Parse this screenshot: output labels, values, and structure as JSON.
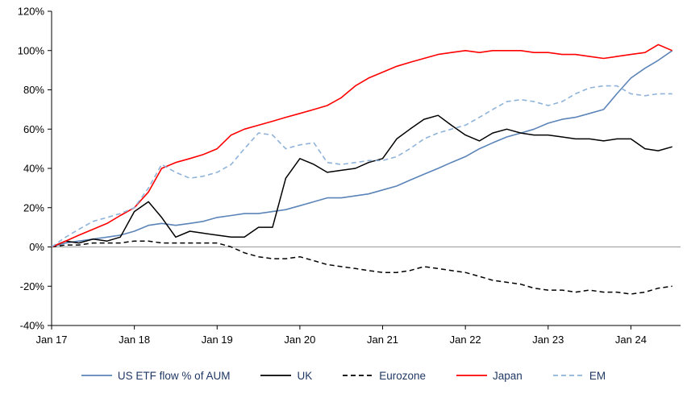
{
  "chart_data": {
    "type": "line",
    "title": "",
    "xlabel": "",
    "ylabel": "",
    "xlim": [
      2017.0,
      2024.6
    ],
    "ylim": [
      -40,
      120
    ],
    "y_ticks": [
      120,
      100,
      80,
      60,
      40,
      20,
      0,
      -20,
      -40
    ],
    "y_tick_suffix": "%",
    "x_tick_values": [
      2017,
      2018,
      2019,
      2020,
      2021,
      2022,
      2023,
      2024
    ],
    "x_tick_labels": [
      "Jan 17",
      "Jan 18",
      "Jan 19",
      "Jan 20",
      "Jan 21",
      "Jan 22",
      "Jan 23",
      "Jan 24"
    ],
    "grid": false,
    "zero_line": true,
    "zero_line_color": "#9a9a9a",
    "axis_color": "#000000",
    "legend_position": "bottom",
    "legend_text_color": "#1f3864",
    "x": [
      2017.0,
      2017.17,
      2017.33,
      2017.5,
      2017.67,
      2017.83,
      2018.0,
      2018.17,
      2018.33,
      2018.5,
      2018.67,
      2018.83,
      2019.0,
      2019.17,
      2019.33,
      2019.5,
      2019.67,
      2019.83,
      2020.0,
      2020.17,
      2020.33,
      2020.5,
      2020.67,
      2020.83,
      2021.0,
      2021.17,
      2021.33,
      2021.5,
      2021.67,
      2021.83,
      2022.0,
      2022.17,
      2022.33,
      2022.5,
      2022.67,
      2022.83,
      2023.0,
      2023.17,
      2023.33,
      2023.5,
      2023.67,
      2023.83,
      2024.0,
      2024.17,
      2024.33,
      2024.5
    ],
    "series": [
      {
        "name": "US ETF flow % of AUM",
        "color": "#5b84b8",
        "dash": "solid",
        "width": 1.6,
        "values": [
          0,
          2,
          3,
          4,
          5,
          6,
          8,
          11,
          12,
          11,
          12,
          13,
          15,
          16,
          17,
          17,
          18,
          19,
          21,
          23,
          25,
          25,
          26,
          27,
          29,
          31,
          34,
          37,
          40,
          43,
          46,
          50,
          53,
          56,
          58,
          60,
          63,
          65,
          66,
          68,
          70,
          78,
          86,
          91,
          95,
          100
        ]
      },
      {
        "name": "UK",
        "color": "#000000",
        "dash": "solid",
        "width": 1.5,
        "values": [
          0,
          3,
          2,
          4,
          3,
          5,
          18,
          23,
          15,
          5,
          8,
          7,
          6,
          5,
          5,
          10,
          10,
          35,
          45,
          42,
          38,
          39,
          40,
          43,
          45,
          55,
          60,
          65,
          67,
          62,
          57,
          54,
          58,
          60,
          58,
          57,
          57,
          56,
          55,
          55,
          54,
          55,
          55,
          50,
          49,
          51
        ]
      },
      {
        "name": "Eurozone",
        "color": "#000000",
        "dash": "dashed",
        "width": 1.5,
        "values": [
          0,
          1,
          1,
          2,
          2,
          2,
          3,
          3,
          2,
          2,
          2,
          2,
          2,
          0,
          -3,
          -5,
          -6,
          -6,
          -5,
          -7,
          -9,
          -10,
          -11,
          -12,
          -13,
          -13,
          -12,
          -10,
          -11,
          -12,
          -13,
          -15,
          -17,
          -18,
          -19,
          -21,
          -22,
          -22,
          -23,
          -22,
          -23,
          -23,
          -24,
          -23,
          -21,
          -20
        ]
      },
      {
        "name": "Japan",
        "color": "#ff0000",
        "dash": "solid",
        "width": 1.6,
        "values": [
          0,
          3,
          6,
          9,
          12,
          16,
          20,
          28,
          40,
          43,
          45,
          47,
          50,
          57,
          60,
          62,
          64,
          66,
          68,
          70,
          72,
          76,
          82,
          86,
          89,
          92,
          94,
          96,
          98,
          99,
          100,
          99,
          100,
          100,
          100,
          99,
          99,
          98,
          98,
          97,
          96,
          97,
          98,
          99,
          103,
          100
        ]
      },
      {
        "name": "EM",
        "color": "#8fb3d9",
        "dash": "dashed",
        "width": 1.6,
        "values": [
          0,
          5,
          9,
          13,
          15,
          17,
          20,
          30,
          42,
          38,
          35,
          36,
          38,
          42,
          50,
          58,
          57,
          50,
          52,
          53,
          43,
          42,
          43,
          44,
          44,
          46,
          50,
          55,
          58,
          60,
          62,
          66,
          70,
          74,
          75,
          74,
          72,
          74,
          78,
          81,
          82,
          82,
          78,
          77,
          78,
          78
        ]
      }
    ]
  }
}
